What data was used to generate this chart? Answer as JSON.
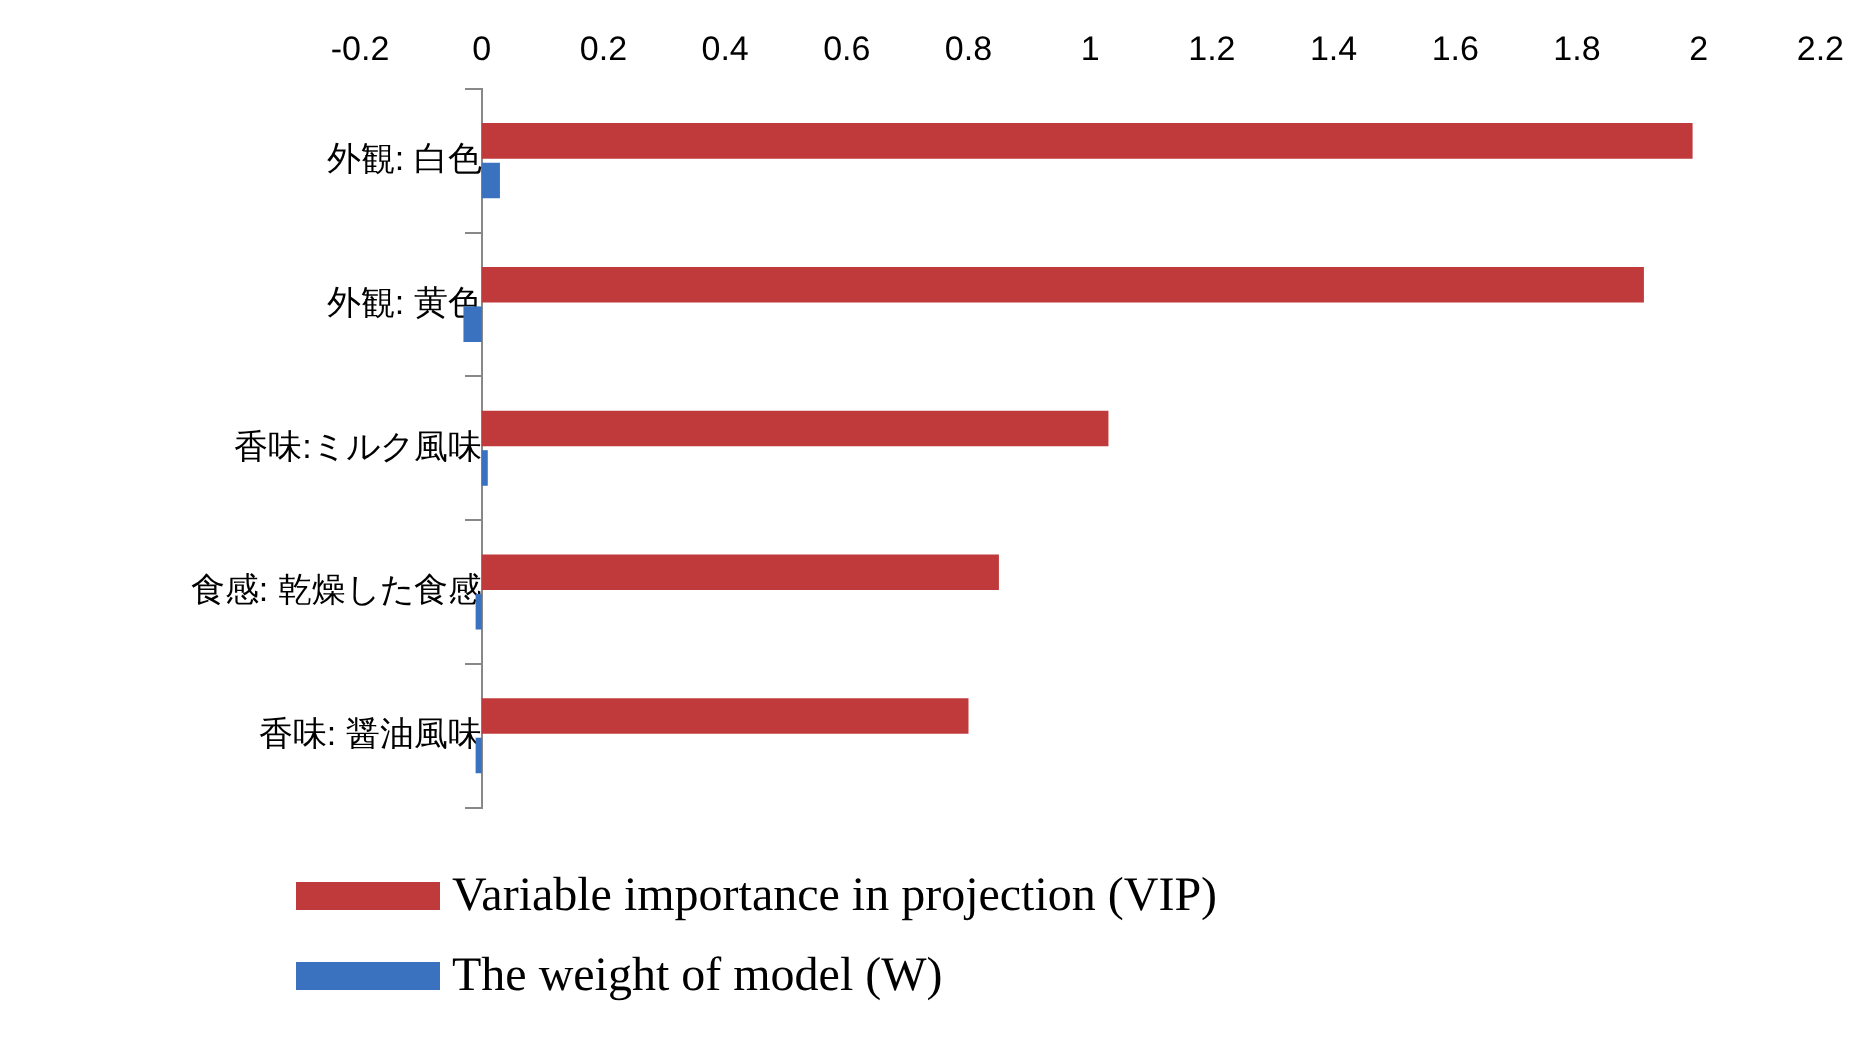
{
  "chart_data": {
    "type": "bar",
    "orientation": "horizontal",
    "categories": [
      "外観: 白色",
      "外観: 黄色",
      "香味:ミルク風味",
      "食感: 乾燥した食感",
      "香味: 醤油風味"
    ],
    "series": [
      {
        "name": "Variable importance in projection (VIP)",
        "color": "#c0393b",
        "values": [
          1.99,
          1.91,
          1.03,
          0.85,
          0.8
        ]
      },
      {
        "name": "The weight of model (W)",
        "color": "#3a72c0",
        "values": [
          0.03,
          -0.03,
          0.01,
          -0.01,
          -0.01
        ]
      }
    ],
    "xlim": [
      -0.2,
      2.2
    ],
    "xticks": [
      -0.2,
      0,
      0.2,
      0.4,
      0.6,
      0.8,
      1,
      1.2,
      1.4,
      1.6,
      1.8,
      2,
      2.2
    ],
    "grid": false,
    "legend": "bottom"
  }
}
